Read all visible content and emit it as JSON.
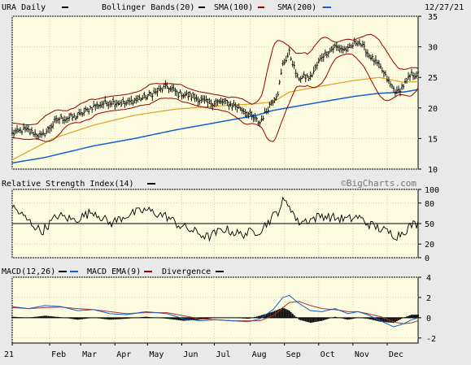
{
  "chart_data": [
    {
      "type": "line",
      "panel": "price",
      "title": "URA Daily",
      "date_stamp": "12/27/21",
      "legend": [
        {
          "label": "URA Daily",
          "color": "#000000"
        },
        {
          "label": "Bollinger Bands(20)",
          "color": "#000000"
        },
        {
          "label": "SMA(100)",
          "color": "#990000"
        },
        {
          "label": "SMA(200)",
          "color": "#e0a020"
        },
        {
          "label": "",
          "color": "#1060d0"
        }
      ],
      "y_ticks": [
        "35",
        "30",
        "25",
        "20",
        "15",
        "10"
      ],
      "ylim": [
        10,
        35
      ],
      "grid": true,
      "x_months": [
        "21",
        "Feb",
        "Mar",
        "Apr",
        "May",
        "Jun",
        "Jul",
        "Aug",
        "Sep",
        "Oct",
        "Nov",
        "Dec"
      ],
      "x_day_index": [
        0,
        23,
        42,
        63,
        83,
        104,
        124,
        146,
        167,
        188,
        209,
        230
      ],
      "total_days": 250,
      "price_keypoints": [
        [
          0,
          15.8
        ],
        [
          8,
          16.5
        ],
        [
          18,
          15.3
        ],
        [
          28,
          18.2
        ],
        [
          40,
          18.6
        ],
        [
          50,
          20.3
        ],
        [
          60,
          21.0
        ],
        [
          70,
          20.8
        ],
        [
          82,
          21.8
        ],
        [
          95,
          23.5
        ],
        [
          102,
          22.3
        ],
        [
          110,
          22.0
        ],
        [
          120,
          20.8
        ],
        [
          130,
          21.0
        ],
        [
          140,
          20.0
        ],
        [
          152,
          17.6
        ],
        [
          158,
          20.5
        ],
        [
          163,
          22.5
        ],
        [
          166,
          27.0
        ],
        [
          170,
          29.0
        ],
        [
          175,
          25.0
        ],
        [
          183,
          25.0
        ],
        [
          190,
          28.5
        ],
        [
          198,
          30.0
        ],
        [
          206,
          29.5
        ],
        [
          212,
          31.0
        ],
        [
          218,
          29.0
        ],
        [
          226,
          26.5
        ],
        [
          232,
          23.8
        ],
        [
          236,
          22.5
        ],
        [
          241,
          24.0
        ],
        [
          245,
          25.5
        ],
        [
          249,
          25.5
        ]
      ],
      "sma100_keypoints": [
        [
          0,
          11.5
        ],
        [
          25,
          15.0
        ],
        [
          50,
          17.2
        ],
        [
          75,
          18.8
        ],
        [
          100,
          19.8
        ],
        [
          125,
          20.3
        ],
        [
          150,
          20.7
        ],
        [
          160,
          21.0
        ],
        [
          170,
          22.6
        ],
        [
          190,
          23.6
        ],
        [
          210,
          24.5
        ],
        [
          225,
          25.0
        ],
        [
          240,
          24.2
        ],
        [
          249,
          24.3
        ]
      ],
      "sma200_keypoints": [
        [
          0,
          11.0
        ],
        [
          20,
          11.9
        ],
        [
          50,
          13.8
        ],
        [
          75,
          15.0
        ],
        [
          100,
          16.4
        ],
        [
          125,
          17.6
        ],
        [
          150,
          18.8
        ],
        [
          160,
          19.6
        ],
        [
          175,
          20.3
        ],
        [
          190,
          21.0
        ],
        [
          210,
          21.9
        ],
        [
          225,
          22.4
        ],
        [
          240,
          22.6
        ],
        [
          249,
          23.0
        ]
      ]
    },
    {
      "type": "line",
      "panel": "rsi",
      "title": "Relative Strength Index(14)",
      "watermark": "©BigCharts.com",
      "y_ticks": [
        "100",
        "80",
        "50",
        "20",
        "0"
      ],
      "ylim": [
        0,
        100
      ],
      "reference_line": 50,
      "rsi_keypoints": [
        [
          0,
          75
        ],
        [
          8,
          58
        ],
        [
          18,
          38
        ],
        [
          28,
          62
        ],
        [
          38,
          55
        ],
        [
          50,
          68
        ],
        [
          60,
          50
        ],
        [
          70,
          62
        ],
        [
          82,
          70
        ],
        [
          95,
          60
        ],
        [
          102,
          48
        ],
        [
          110,
          40
        ],
        [
          120,
          30
        ],
        [
          130,
          42
        ],
        [
          140,
          34
        ],
        [
          152,
          40
        ],
        [
          158,
          55
        ],
        [
          163,
          68
        ],
        [
          166,
          82
        ],
        [
          170,
          78
        ],
        [
          175,
          52
        ],
        [
          183,
          56
        ],
        [
          190,
          62
        ],
        [
          198,
          58
        ],
        [
          206,
          56
        ],
        [
          212,
          60
        ],
        [
          218,
          50
        ],
        [
          226,
          42
        ],
        [
          232,
          36
        ],
        [
          236,
          32
        ],
        [
          241,
          40
        ],
        [
          245,
          48
        ],
        [
          249,
          50
        ]
      ]
    },
    {
      "type": "line",
      "panel": "macd",
      "title": "MACD(12,26)",
      "legend": [
        {
          "label": "MACD(12,26)",
          "color": "#000000"
        },
        {
          "label": "MACD EMA(9)",
          "color": "#1060d0"
        },
        {
          "label": "Divergence",
          "color": "#000000"
        }
      ],
      "y_ticks": [
        "4",
        "2",
        "0",
        "-2"
      ],
      "ylim": [
        -2.5,
        4
      ],
      "macd_keypoints": [
        [
          0,
          1.1
        ],
        [
          10,
          0.9
        ],
        [
          20,
          1.2
        ],
        [
          30,
          1.1
        ],
        [
          40,
          0.7
        ],
        [
          50,
          0.8
        ],
        [
          60,
          0.4
        ],
        [
          70,
          0.3
        ],
        [
          82,
          0.6
        ],
        [
          95,
          0.4
        ],
        [
          105,
          -0.1
        ],
        [
          115,
          -0.3
        ],
        [
          125,
          -0.2
        ],
        [
          135,
          -0.3
        ],
        [
          145,
          -0.4
        ],
        [
          152,
          -0.1
        ],
        [
          160,
          0.8
        ],
        [
          166,
          2.0
        ],
        [
          170,
          2.2
        ],
        [
          176,
          1.4
        ],
        [
          183,
          0.7
        ],
        [
          190,
          0.6
        ],
        [
          198,
          0.9
        ],
        [
          206,
          0.4
        ],
        [
          212,
          0.6
        ],
        [
          218,
          0.3
        ],
        [
          226,
          -0.3
        ],
        [
          234,
          -0.9
        ],
        [
          240,
          -0.6
        ],
        [
          245,
          -0.2
        ],
        [
          249,
          0.0
        ]
      ],
      "ema_keypoints": [
        [
          0,
          1.0
        ],
        [
          10,
          0.9
        ],
        [
          20,
          1.0
        ],
        [
          30,
          1.05
        ],
        [
          40,
          0.9
        ],
        [
          50,
          0.8
        ],
        [
          60,
          0.6
        ],
        [
          70,
          0.4
        ],
        [
          82,
          0.5
        ],
        [
          95,
          0.5
        ],
        [
          105,
          0.2
        ],
        [
          115,
          -0.1
        ],
        [
          125,
          -0.2
        ],
        [
          135,
          -0.3
        ],
        [
          145,
          -0.3
        ],
        [
          152,
          -0.3
        ],
        [
          160,
          0.2
        ],
        [
          166,
          1.0
        ],
        [
          170,
          1.5
        ],
        [
          176,
          1.6
        ],
        [
          183,
          1.2
        ],
        [
          190,
          0.9
        ],
        [
          198,
          0.8
        ],
        [
          206,
          0.6
        ],
        [
          212,
          0.6
        ],
        [
          218,
          0.4
        ],
        [
          226,
          0.1
        ],
        [
          234,
          -0.4
        ],
        [
          240,
          -0.6
        ],
        [
          245,
          -0.5
        ],
        [
          249,
          -0.3
        ]
      ]
    }
  ]
}
